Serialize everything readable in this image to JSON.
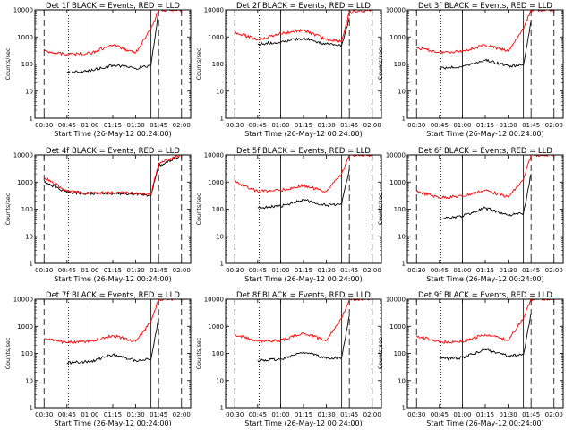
{
  "figure": {
    "colors": {
      "events": "#000000",
      "lld": "#ff0000",
      "axis": "#000000",
      "background": "#ffffff"
    }
  },
  "chart_data": [
    {
      "type": "line",
      "title": "Det 1f BLACK = Events, RED = LLD",
      "ylabel": "Counts/sec",
      "xlabel": "Start Time (26-May-12 00:24:00)",
      "yscale": "log",
      "ylim": [
        1,
        10000
      ],
      "xlim": [
        "00:24",
        "02:06"
      ],
      "x_ticks": [
        "00:30",
        "00:45",
        "01:00",
        "01:15",
        "01:30",
        "01:45",
        "02:00"
      ],
      "y_ticks": [
        "1",
        "10",
        "100",
        "1000",
        "10000"
      ],
      "grid": false,
      "x": [
        "00:30",
        "00:45",
        "01:00",
        "01:15",
        "01:30",
        "01:40",
        "01:45",
        "02:00"
      ],
      "series": [
        {
          "name": "Events",
          "color": "#000000",
          "values": [
            null,
            50,
            55,
            90,
            70,
            90,
            9000,
            null
          ]
        },
        {
          "name": "LLD",
          "color": "#ff0000",
          "values": [
            300,
            230,
            250,
            500,
            260,
            2000,
            10000,
            10000
          ]
        }
      ]
    },
    {
      "type": "line",
      "title": "Det 2f BLACK = Events, RED = LLD",
      "ylabel": "Counts/sec",
      "xlabel": "Start Time (26-May-12 00:24:00)",
      "yscale": "log",
      "ylim": [
        1,
        10000
      ],
      "xlim": [
        "00:24",
        "02:06"
      ],
      "x_ticks": [
        "00:30",
        "00:45",
        "01:00",
        "01:15",
        "01:30",
        "01:45",
        "02:00"
      ],
      "y_ticks": [
        "1",
        "10",
        "100",
        "1000",
        "10000"
      ],
      "grid": false,
      "x": [
        "00:30",
        "00:45",
        "01:00",
        "01:15",
        "01:30",
        "01:40",
        "01:45",
        "02:00"
      ],
      "series": [
        {
          "name": "Events",
          "color": "#000000",
          "values": [
            null,
            550,
            650,
            900,
            550,
            500,
            5000,
            null
          ]
        },
        {
          "name": "LLD",
          "color": "#ff0000",
          "values": [
            1500,
            800,
            1300,
            1800,
            800,
            700,
            8000,
            10000
          ]
        }
      ]
    },
    {
      "type": "line",
      "title": "Det 3f BLACK = Events, RED = LLD",
      "ylabel": "Counts/sec",
      "xlabel": "Start Time (26-May-12 00:24:00)",
      "yscale": "log",
      "ylim": [
        1,
        10000
      ],
      "xlim": [
        "00:24",
        "02:06"
      ],
      "x_ticks": [
        "00:30",
        "00:45",
        "01:00",
        "01:15",
        "01:30",
        "01:45",
        "02:00"
      ],
      "y_ticks": [
        "1",
        "10",
        "100",
        "1000",
        "10000"
      ],
      "grid": false,
      "x": [
        "00:30",
        "00:45",
        "01:00",
        "01:15",
        "01:30",
        "01:40",
        "01:45",
        "02:00"
      ],
      "series": [
        {
          "name": "Events",
          "color": "#000000",
          "values": [
            null,
            70,
            80,
            140,
            85,
            90,
            4000,
            null
          ]
        },
        {
          "name": "LLD",
          "color": "#ff0000",
          "values": [
            400,
            270,
            300,
            500,
            300,
            2000,
            10000,
            10000
          ]
        }
      ]
    },
    {
      "type": "line",
      "title": "Det 4f BLACK = Events, RED = LLD",
      "ylabel": "Counts/sec",
      "xlabel": "Start Time (26-May-12 00:24:00)",
      "yscale": "log",
      "ylim": [
        1,
        10000
      ],
      "xlim": [
        "00:24",
        "02:06"
      ],
      "x_ticks": [
        "00:30",
        "00:45",
        "01:00",
        "01:15",
        "01:30",
        "01:45",
        "02:00"
      ],
      "y_ticks": [
        "1",
        "10",
        "100",
        "1000",
        "10000"
      ],
      "grid": false,
      "x": [
        "00:30",
        "00:45",
        "01:00",
        "01:15",
        "01:30",
        "01:40",
        "01:45",
        "02:00"
      ],
      "series": [
        {
          "name": "Events",
          "color": "#000000",
          "values": [
            1000,
            420,
            380,
            380,
            360,
            320,
            4000,
            10000
          ]
        },
        {
          "name": "LLD",
          "color": "#ff0000",
          "values": [
            1500,
            450,
            400,
            400,
            380,
            350,
            5000,
            10000
          ]
        }
      ]
    },
    {
      "type": "line",
      "title": "Det 5f BLACK = Events, RED = LLD",
      "ylabel": "Counts/sec",
      "xlabel": "Start Time (26-May-12 00:24:00)",
      "yscale": "log",
      "ylim": [
        1,
        10000
      ],
      "xlim": [
        "00:24",
        "02:06"
      ],
      "x_ticks": [
        "00:30",
        "00:45",
        "01:00",
        "01:15",
        "01:30",
        "01:45",
        "02:00"
      ],
      "y_ticks": [
        "1",
        "10",
        "100",
        "1000",
        "10000"
      ],
      "grid": false,
      "x": [
        "00:30",
        "00:45",
        "01:00",
        "01:15",
        "01:30",
        "01:40",
        "01:45",
        "02:00"
      ],
      "series": [
        {
          "name": "Events",
          "color": "#000000",
          "values": [
            null,
            110,
            130,
            220,
            140,
            150,
            3000,
            null
          ]
        },
        {
          "name": "LLD",
          "color": "#ff0000",
          "values": [
            1000,
            450,
            500,
            750,
            450,
            2000,
            10000,
            10000
          ]
        }
      ]
    },
    {
      "type": "line",
      "title": "Det 6f BLACK = Events, RED = LLD",
      "ylabel": "Counts/sec",
      "xlabel": "Start Time (26-May-12 00:24:00)",
      "yscale": "log",
      "ylim": [
        1,
        10000
      ],
      "xlim": [
        "00:24",
        "02:06"
      ],
      "x_ticks": [
        "00:30",
        "00:45",
        "01:00",
        "01:15",
        "01:30",
        "01:45",
        "02:00"
      ],
      "y_ticks": [
        "1",
        "10",
        "100",
        "1000",
        "10000"
      ],
      "grid": false,
      "x": [
        "00:30",
        "00:45",
        "01:00",
        "01:15",
        "01:30",
        "01:40",
        "01:45",
        "02:00"
      ],
      "series": [
        {
          "name": "Events",
          "color": "#000000",
          "values": [
            null,
            45,
            55,
            110,
            60,
            70,
            2000,
            null
          ]
        },
        {
          "name": "LLD",
          "color": "#ff0000",
          "values": [
            450,
            270,
            300,
            500,
            280,
            1200,
            10000,
            10000
          ]
        }
      ]
    },
    {
      "type": "line",
      "title": "Det 7f BLACK = Events, RED = LLD",
      "ylabel": "Counts/sec",
      "xlabel": "Start Time (26-May-12 00:24:00)",
      "yscale": "log",
      "ylim": [
        1,
        10000
      ],
      "xlim": [
        "00:24",
        "02:06"
      ],
      "x_ticks": [
        "00:30",
        "00:45",
        "01:00",
        "01:15",
        "01:30",
        "01:45",
        "02:00"
      ],
      "y_ticks": [
        "1",
        "10",
        "100",
        "1000",
        "10000"
      ],
      "grid": false,
      "x": [
        "00:30",
        "00:45",
        "01:00",
        "01:15",
        "01:30",
        "01:40",
        "01:45",
        "02:00"
      ],
      "series": [
        {
          "name": "Events",
          "color": "#000000",
          "values": [
            null,
            45,
            50,
            90,
            55,
            60,
            2000,
            null
          ]
        },
        {
          "name": "LLD",
          "color": "#ff0000",
          "values": [
            350,
            250,
            280,
            450,
            280,
            1500,
            10000,
            10000
          ]
        }
      ]
    },
    {
      "type": "line",
      "title": "Det 8f BLACK = Events, RED = LLD",
      "ylabel": "Counts/sec",
      "xlabel": "Start Time (26-May-12 00:24:00)",
      "yscale": "log",
      "ylim": [
        1,
        10000
      ],
      "xlim": [
        "00:24",
        "02:06"
      ],
      "x_ticks": [
        "00:30",
        "00:45",
        "01:00",
        "01:15",
        "01:30",
        "01:45",
        "02:00"
      ],
      "y_ticks": [
        "1",
        "10",
        "100",
        "1000",
        "10000"
      ],
      "grid": false,
      "x": [
        "00:30",
        "00:45",
        "01:00",
        "01:15",
        "01:30",
        "01:40",
        "01:45",
        "02:00"
      ],
      "series": [
        {
          "name": "Events",
          "color": "#000000",
          "values": [
            null,
            55,
            60,
            110,
            65,
            70,
            2500,
            null
          ]
        },
        {
          "name": "LLD",
          "color": "#ff0000",
          "values": [
            500,
            280,
            300,
            550,
            300,
            2000,
            10000,
            10000
          ]
        }
      ]
    },
    {
      "type": "line",
      "title": "Det 9f BLACK = Events, RED = LLD",
      "ylabel": "Counts/sec",
      "xlabel": "Start Time (26-May-12 00:24:00)",
      "yscale": "log",
      "ylim": [
        1,
        10000
      ],
      "xlim": [
        "00:24",
        "02:06"
      ],
      "x_ticks": [
        "00:30",
        "00:45",
        "01:00",
        "01:15",
        "01:30",
        "01:45",
        "02:00"
      ],
      "y_ticks": [
        "1",
        "10",
        "100",
        "1000",
        "10000"
      ],
      "grid": false,
      "x": [
        "00:30",
        "00:45",
        "01:00",
        "01:15",
        "01:30",
        "01:40",
        "01:45",
        "02:00"
      ],
      "series": [
        {
          "name": "Events",
          "color": "#000000",
          "values": [
            null,
            65,
            70,
            140,
            80,
            90,
            3000,
            null
          ]
        },
        {
          "name": "LLD",
          "color": "#ff0000",
          "values": [
            450,
            260,
            280,
            500,
            300,
            2000,
            10000,
            10000
          ]
        }
      ]
    }
  ]
}
